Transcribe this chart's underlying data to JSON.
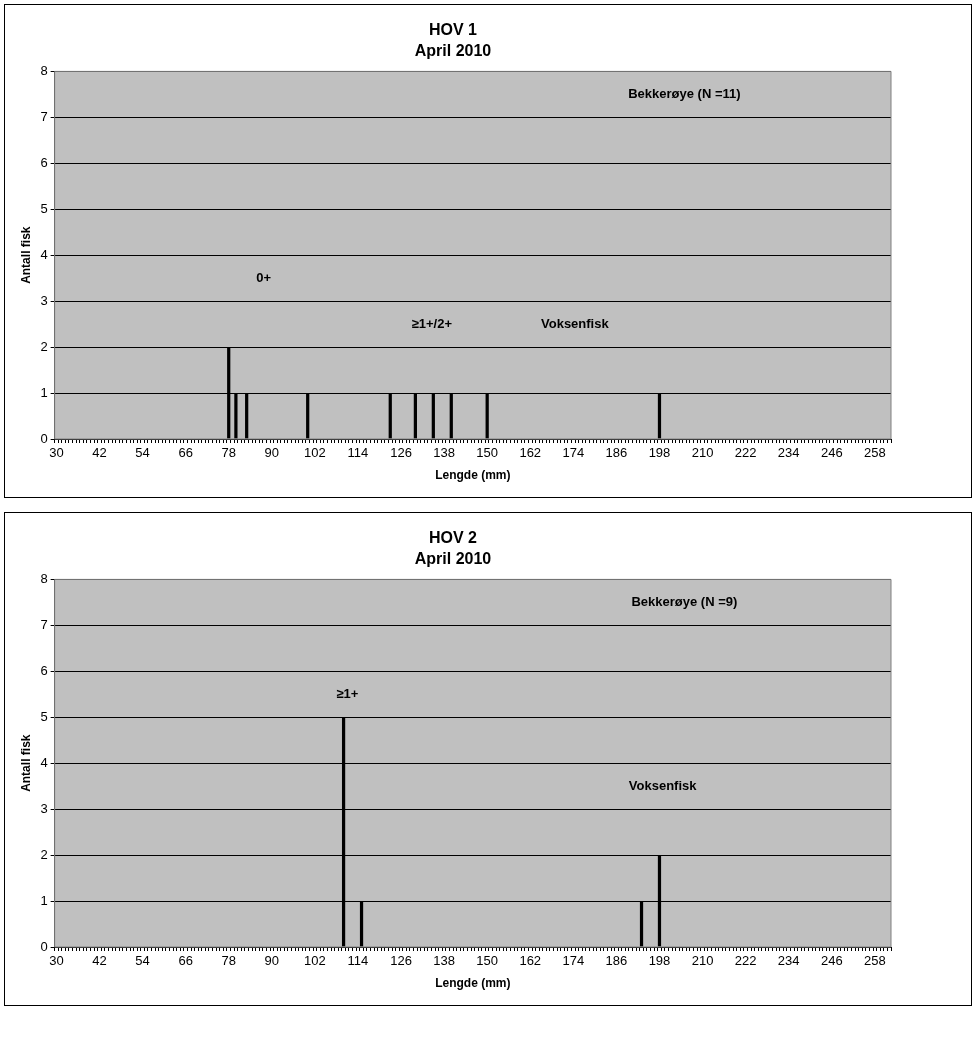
{
  "chart_data": [
    {
      "type": "bar",
      "title": "HOV 1",
      "subtitle": "April 2010",
      "xlabel": "Lengde (mm)",
      "ylabel": "Antall fisk",
      "categories": [
        "30",
        null,
        null,
        null,
        null,
        null,
        null,
        null,
        null,
        null,
        null,
        null,
        "42",
        null,
        null,
        null,
        null,
        null,
        null,
        null,
        null,
        null,
        null,
        null,
        "54",
        null,
        null,
        null,
        null,
        null,
        null,
        null,
        null,
        null,
        null,
        null,
        "66",
        null,
        null,
        null,
        null,
        null,
        null,
        null,
        null,
        null,
        null,
        null,
        "78",
        null,
        null,
        null,
        null,
        null,
        null,
        null,
        null,
        null,
        null,
        null,
        "90",
        null,
        null,
        null,
        null,
        null,
        null,
        null,
        null,
        null,
        null,
        null,
        "102",
        null,
        null,
        null,
        null,
        null,
        null,
        null,
        null,
        null,
        null,
        null,
        "114",
        null,
        null,
        null,
        null,
        null,
        null,
        null,
        null,
        null,
        null,
        null,
        "126",
        null,
        null,
        null,
        null,
        null,
        null,
        null,
        null,
        null,
        null,
        null,
        "138",
        null,
        null,
        null,
        null,
        null,
        null,
        null,
        null,
        null,
        null,
        null,
        "150",
        null,
        null,
        null,
        null,
        null,
        null,
        null,
        null,
        null,
        null,
        null,
        "162",
        null,
        null,
        null,
        null,
        null,
        null,
        null,
        null,
        null,
        null,
        null,
        "174",
        null,
        null,
        null,
        null,
        null,
        null,
        null,
        null,
        null,
        null,
        null,
        "186",
        null,
        null,
        null,
        null,
        null,
        null,
        null,
        null,
        null,
        null,
        null,
        "198",
        null,
        null,
        null,
        null,
        null,
        null,
        null,
        null,
        null,
        null,
        null,
        "210",
        null,
        null,
        null,
        null,
        null,
        null,
        null,
        null,
        null,
        null,
        null,
        "222",
        null,
        null,
        null,
        null,
        null,
        null,
        null,
        null,
        null,
        null,
        null,
        "234",
        null,
        null,
        null,
        null,
        null,
        null,
        null,
        null,
        null,
        null,
        null,
        "246",
        null,
        null,
        null,
        null,
        null,
        null,
        null,
        null,
        null,
        null,
        null,
        "258",
        null,
        null,
        null,
        null
      ],
      "values": [
        0,
        0,
        0,
        0,
        0,
        0,
        0,
        0,
        0,
        0,
        0,
        0,
        0,
        0,
        0,
        0,
        0,
        0,
        0,
        0,
        0,
        0,
        0,
        0,
        0,
        0,
        0,
        0,
        0,
        0,
        0,
        0,
        0,
        0,
        0,
        0,
        0,
        0,
        0,
        0,
        0,
        0,
        0,
        0,
        0,
        0,
        0,
        0,
        2,
        0,
        1,
        0,
        0,
        1,
        0,
        0,
        0,
        0,
        0,
        0,
        0,
        0,
        0,
        0,
        0,
        0,
        0,
        0,
        0,
        0,
        1,
        0,
        0,
        0,
        0,
        0,
        0,
        0,
        0,
        0,
        0,
        0,
        0,
        0,
        0,
        0,
        0,
        0,
        0,
        0,
        0,
        0,
        0,
        1,
        0,
        0,
        0,
        0,
        0,
        0,
        1,
        0,
        0,
        0,
        0,
        1,
        0,
        0,
        0,
        0,
        1,
        0,
        0,
        0,
        0,
        0,
        0,
        0,
        0,
        0,
        1,
        0,
        0,
        0,
        0,
        0,
        0,
        0,
        0,
        0,
        0,
        0,
        0,
        0,
        0,
        0,
        0,
        0,
        0,
        0,
        0,
        0,
        0,
        0,
        0,
        0,
        0,
        0,
        0,
        0,
        0,
        0,
        0,
        0,
        0,
        0,
        0,
        0,
        0,
        0,
        0,
        0,
        0,
        0,
        0,
        0,
        0,
        0,
        1,
        0,
        0,
        0,
        0,
        0,
        0,
        0,
        0,
        0,
        0,
        0,
        0,
        0,
        0,
        0,
        0,
        0,
        0,
        0,
        0,
        0,
        0,
        0,
        0,
        0,
        0,
        0,
        0,
        0,
        0,
        0,
        0,
        0,
        0,
        0,
        0,
        0,
        0,
        0,
        0,
        0,
        0,
        0,
        0,
        0,
        0,
        0,
        0,
        0,
        0,
        0,
        0,
        0,
        0,
        0,
        0,
        0,
        0,
        0,
        0,
        0,
        0,
        0,
        0
      ],
      "color": "#000000",
      "ylim": [
        0,
        8
      ],
      "yticks": [
        0,
        1,
        2,
        3,
        4,
        5,
        6,
        7,
        8
      ],
      "grid": "y",
      "annotations": [
        "Bekkerøye (N =11)",
        "0+",
        "≥1+/2+",
        "Voksenfisk"
      ]
    },
    {
      "type": "bar",
      "title": "HOV 2",
      "subtitle": "April 2010",
      "xlabel": "Lengde (mm)",
      "ylabel": "Antall fisk",
      "categories": [
        "30",
        null,
        null,
        null,
        null,
        null,
        null,
        null,
        null,
        null,
        null,
        null,
        "42",
        null,
        null,
        null,
        null,
        null,
        null,
        null,
        null,
        null,
        null,
        null,
        "54",
        null,
        null,
        null,
        null,
        null,
        null,
        null,
        null,
        null,
        null,
        null,
        "66",
        null,
        null,
        null,
        null,
        null,
        null,
        null,
        null,
        null,
        null,
        null,
        "78",
        null,
        null,
        null,
        null,
        null,
        null,
        null,
        null,
        null,
        null,
        null,
        "90",
        null,
        null,
        null,
        null,
        null,
        null,
        null,
        null,
        null,
        null,
        null,
        "102",
        null,
        null,
        null,
        null,
        null,
        null,
        null,
        null,
        null,
        null,
        null,
        "114",
        null,
        null,
        null,
        null,
        null,
        null,
        null,
        null,
        null,
        null,
        null,
        "126",
        null,
        null,
        null,
        null,
        null,
        null,
        null,
        null,
        null,
        null,
        null,
        "138",
        null,
        null,
        null,
        null,
        null,
        null,
        null,
        null,
        null,
        null,
        null,
        "150",
        null,
        null,
        null,
        null,
        null,
        null,
        null,
        null,
        null,
        null,
        null,
        "162",
        null,
        null,
        null,
        null,
        null,
        null,
        null,
        null,
        null,
        null,
        null,
        "174",
        null,
        null,
        null,
        null,
        null,
        null,
        null,
        null,
        null,
        null,
        null,
        "186",
        null,
        null,
        null,
        null,
        null,
        null,
        null,
        null,
        null,
        null,
        null,
        "198",
        null,
        null,
        null,
        null,
        null,
        null,
        null,
        null,
        null,
        null,
        null,
        "210",
        null,
        null,
        null,
        null,
        null,
        null,
        null,
        null,
        null,
        null,
        null,
        "222",
        null,
        null,
        null,
        null,
        null,
        null,
        null,
        null,
        null,
        null,
        null,
        "234",
        null,
        null,
        null,
        null,
        null,
        null,
        null,
        null,
        null,
        null,
        null,
        "246",
        null,
        null,
        null,
        null,
        null,
        null,
        null,
        null,
        null,
        null,
        null,
        "258",
        null,
        null,
        null,
        null
      ],
      "values": [
        0,
        0,
        0,
        0,
        0,
        0,
        0,
        0,
        0,
        0,
        0,
        0,
        0,
        0,
        0,
        0,
        0,
        0,
        0,
        0,
        0,
        0,
        0,
        0,
        0,
        0,
        0,
        0,
        0,
        0,
        0,
        0,
        0,
        0,
        0,
        0,
        0,
        0,
        0,
        0,
        0,
        0,
        0,
        0,
        0,
        0,
        0,
        0,
        0,
        0,
        0,
        0,
        0,
        0,
        0,
        0,
        0,
        0,
        0,
        0,
        0,
        0,
        0,
        0,
        0,
        0,
        0,
        0,
        0,
        0,
        0,
        0,
        0,
        0,
        0,
        0,
        0,
        0,
        0,
        0,
        5,
        0,
        0,
        0,
        0,
        1,
        0,
        0,
        0,
        0,
        0,
        0,
        0,
        0,
        0,
        0,
        0,
        0,
        0,
        0,
        0,
        0,
        0,
        0,
        0,
        0,
        0,
        0,
        0,
        0,
        0,
        0,
        0,
        0,
        0,
        0,
        0,
        0,
        0,
        0,
        0,
        0,
        0,
        0,
        0,
        0,
        0,
        0,
        0,
        0,
        0,
        0,
        0,
        0,
        0,
        0,
        0,
        0,
        0,
        0,
        0,
        0,
        0,
        0,
        0,
        0,
        0,
        0,
        0,
        0,
        0,
        0,
        0,
        0,
        0,
        0,
        0,
        0,
        0,
        0,
        0,
        0,
        0,
        1,
        0,
        0,
        0,
        0,
        2,
        0,
        0,
        0,
        0,
        0,
        0,
        0,
        0,
        0,
        0,
        0,
        0,
        0,
        0,
        0,
        0,
        0,
        0,
        0,
        0,
        0,
        0,
        0,
        0,
        0,
        0,
        0,
        0,
        0,
        0,
        0,
        0,
        0,
        0,
        0,
        0,
        0,
        0,
        0,
        0,
        0,
        0,
        0,
        0,
        0,
        0,
        0,
        0,
        0,
        0,
        0,
        0,
        0,
        0,
        0,
        0,
        0,
        0,
        0,
        0,
        0,
        0,
        0,
        0
      ],
      "color": "#000000",
      "ylim": [
        0,
        8
      ],
      "yticks": [
        0,
        1,
        2,
        3,
        4,
        5,
        6,
        7,
        8
      ],
      "grid": "y",
      "annotations": [
        "Bekkerøye (N =9)",
        "≥1+",
        "Voksenfisk"
      ]
    }
  ]
}
